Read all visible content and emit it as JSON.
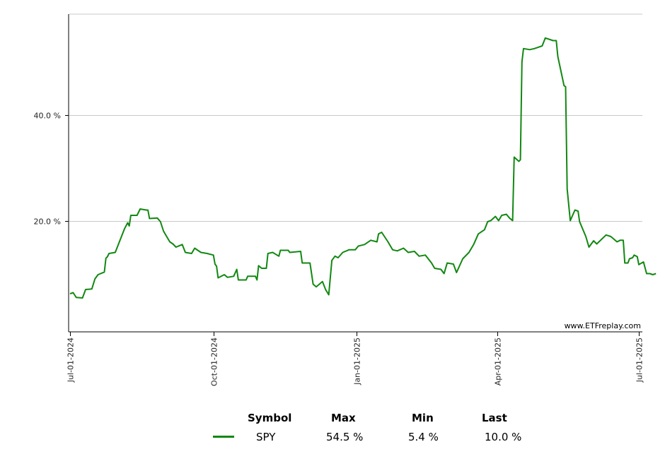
{
  "chart_data": {
    "type": "line",
    "ylim": [
      -1,
      59
    ],
    "y_ticks": [
      {
        "value": 20,
        "label": "20.0 %"
      },
      {
        "value": 40,
        "label": "40.0 %"
      }
    ],
    "x_ticks": [
      "Jul-01-2024",
      "Oct-01-2024",
      "Jan-01-2025",
      "Apr-01-2025",
      "Jul-01-2025"
    ],
    "grid": true,
    "watermark": "www.ETFreplay.com",
    "series": [
      {
        "name": "SPY",
        "color": "#118811",
        "points": [
          [
            "2024-07-01",
            6.2
          ],
          [
            "2024-07-03",
            6.4
          ],
          [
            "2024-07-05",
            5.5
          ],
          [
            "2024-07-09",
            5.4
          ],
          [
            "2024-07-11",
            7.0
          ],
          [
            "2024-07-15",
            7.1
          ],
          [
            "2024-07-17",
            9.0
          ],
          [
            "2024-07-19",
            9.8
          ],
          [
            "2024-07-23",
            10.3
          ],
          [
            "2024-07-24",
            12.9
          ],
          [
            "2024-07-25",
            13.2
          ],
          [
            "2024-07-26",
            13.8
          ],
          [
            "2024-07-30",
            14.0
          ],
          [
            "2024-08-01",
            15.5
          ],
          [
            "2024-08-05",
            18.5
          ],
          [
            "2024-08-07",
            19.6
          ],
          [
            "2024-08-08",
            19.0
          ],
          [
            "2024-08-09",
            21.0
          ],
          [
            "2024-08-13",
            21.0
          ],
          [
            "2024-08-15",
            22.2
          ],
          [
            "2024-08-19",
            22.0
          ],
          [
            "2024-08-20",
            22.0
          ],
          [
            "2024-08-21",
            20.4
          ],
          [
            "2024-08-26",
            20.5
          ],
          [
            "2024-08-28",
            19.8
          ],
          [
            "2024-08-30",
            18.0
          ],
          [
            "2024-09-03",
            16.0
          ],
          [
            "2024-09-05",
            15.6
          ],
          [
            "2024-09-07",
            15.0
          ],
          [
            "2024-09-11",
            15.5
          ],
          [
            "2024-09-13",
            14.0
          ],
          [
            "2024-09-17",
            13.8
          ],
          [
            "2024-09-19",
            14.8
          ],
          [
            "2024-09-23",
            14.0
          ],
          [
            "2024-09-27",
            13.8
          ],
          [
            "2024-10-01",
            13.5
          ],
          [
            "2024-10-02",
            11.8
          ],
          [
            "2024-10-03",
            11.4
          ],
          [
            "2024-10-04",
            9.2
          ],
          [
            "2024-10-08",
            9.8
          ],
          [
            "2024-10-10",
            9.3
          ],
          [
            "2024-10-14",
            9.5
          ],
          [
            "2024-10-16",
            10.8
          ],
          [
            "2024-10-17",
            8.8
          ],
          [
            "2024-10-22",
            8.8
          ],
          [
            "2024-10-23",
            9.5
          ],
          [
            "2024-10-28",
            9.5
          ],
          [
            "2024-10-29",
            8.8
          ],
          [
            "2024-10-30",
            11.5
          ],
          [
            "2024-11-01",
            11.0
          ],
          [
            "2024-11-04",
            11.0
          ],
          [
            "2024-11-05",
            13.8
          ],
          [
            "2024-11-08",
            14.0
          ],
          [
            "2024-11-12",
            13.3
          ],
          [
            "2024-11-13",
            14.4
          ],
          [
            "2024-11-18",
            14.4
          ],
          [
            "2024-11-19",
            14.0
          ],
          [
            "2024-11-26",
            14.2
          ],
          [
            "2024-11-27",
            12.0
          ],
          [
            "2024-12-02",
            12.0
          ],
          [
            "2024-12-04",
            8.0
          ],
          [
            "2024-12-06",
            7.5
          ],
          [
            "2024-12-10",
            8.5
          ],
          [
            "2024-12-12",
            7.0
          ],
          [
            "2024-12-14",
            6.0
          ],
          [
            "2024-12-16",
            12.5
          ],
          [
            "2024-12-18",
            13.3
          ],
          [
            "2024-12-20",
            13.0
          ],
          [
            "2024-12-23",
            14.0
          ],
          [
            "2024-12-27",
            14.5
          ],
          [
            "2024-12-31",
            14.5
          ],
          [
            "2025-01-02",
            15.2
          ],
          [
            "2025-01-06",
            15.5
          ],
          [
            "2025-01-10",
            16.3
          ],
          [
            "2025-01-14",
            16.0
          ],
          [
            "2025-01-15",
            17.5
          ],
          [
            "2025-01-17",
            17.8
          ],
          [
            "2025-01-21",
            16.0
          ],
          [
            "2025-01-24",
            14.5
          ],
          [
            "2025-01-27",
            14.3
          ],
          [
            "2025-01-31",
            14.8
          ],
          [
            "2025-02-03",
            14.0
          ],
          [
            "2025-02-07",
            14.2
          ],
          [
            "2025-02-10",
            13.3
          ],
          [
            "2025-02-14",
            13.5
          ],
          [
            "2025-02-18",
            12.0
          ],
          [
            "2025-02-20",
            11.0
          ],
          [
            "2025-02-24",
            10.8
          ],
          [
            "2025-02-26",
            10.0
          ],
          [
            "2025-02-28",
            12.0
          ],
          [
            "2025-03-04",
            11.8
          ],
          [
            "2025-03-06",
            10.2
          ],
          [
            "2025-03-10",
            12.8
          ],
          [
            "2025-03-14",
            14.0
          ],
          [
            "2025-03-17",
            15.5
          ],
          [
            "2025-03-20",
            17.5
          ],
          [
            "2025-03-24",
            18.3
          ],
          [
            "2025-03-26",
            19.8
          ],
          [
            "2025-03-28",
            20.0
          ],
          [
            "2025-03-31",
            20.8
          ],
          [
            "2025-04-02",
            20.0
          ],
          [
            "2025-04-04",
            21.0
          ],
          [
            "2025-04-07",
            21.2
          ],
          [
            "2025-04-09",
            20.5
          ],
          [
            "2025-04-11",
            20.0
          ],
          [
            "2025-04-12",
            32.0
          ],
          [
            "2025-04-15",
            31.2
          ],
          [
            "2025-04-16",
            31.5
          ],
          [
            "2025-04-17",
            50.0
          ],
          [
            "2025-04-18",
            52.5
          ],
          [
            "2025-04-22",
            52.3
          ],
          [
            "2025-04-25",
            52.5
          ],
          [
            "2025-04-30",
            53.0
          ],
          [
            "2025-05-02",
            54.5
          ],
          [
            "2025-05-07",
            54.0
          ],
          [
            "2025-05-09",
            54.0
          ],
          [
            "2025-05-10",
            51.0
          ],
          [
            "2025-05-14",
            45.5
          ],
          [
            "2025-05-15",
            45.3
          ],
          [
            "2025-05-16",
            26.0
          ],
          [
            "2025-05-18",
            20.0
          ],
          [
            "2025-05-21",
            22.0
          ],
          [
            "2025-05-23",
            21.8
          ],
          [
            "2025-05-24",
            19.8
          ],
          [
            "2025-05-28",
            17.0
          ],
          [
            "2025-05-30",
            15.0
          ],
          [
            "2025-06-02",
            16.2
          ],
          [
            "2025-06-04",
            15.6
          ],
          [
            "2025-06-10",
            17.3
          ],
          [
            "2025-06-13",
            17.0
          ],
          [
            "2025-06-17",
            16.0
          ],
          [
            "2025-06-19",
            16.3
          ],
          [
            "2025-06-21",
            16.3
          ],
          [
            "2025-06-22",
            12.0
          ],
          [
            "2025-06-24",
            12.0
          ],
          [
            "2025-06-25",
            12.8
          ],
          [
            "2025-06-27",
            13.0
          ],
          [
            "2025-06-28",
            13.5
          ],
          [
            "2025-06-30",
            13.2
          ],
          [
            "2025-07-01",
            11.7
          ],
          [
            "2025-07-04",
            12.2
          ],
          [
            "2025-07-06",
            10.0
          ],
          [
            "2025-07-08",
            10.0
          ],
          [
            "2025-07-10",
            9.8
          ],
          [
            "2025-07-12",
            10.0
          ]
        ]
      }
    ]
  },
  "legend": {
    "headers": {
      "symbol": "Symbol",
      "max": "Max",
      "min": "Min",
      "last": "Last"
    },
    "rows": [
      {
        "symbol": "SPY",
        "max": "54.5 %",
        "min": "5.4 %",
        "last": "10.0 %",
        "color": "#118811"
      }
    ]
  }
}
